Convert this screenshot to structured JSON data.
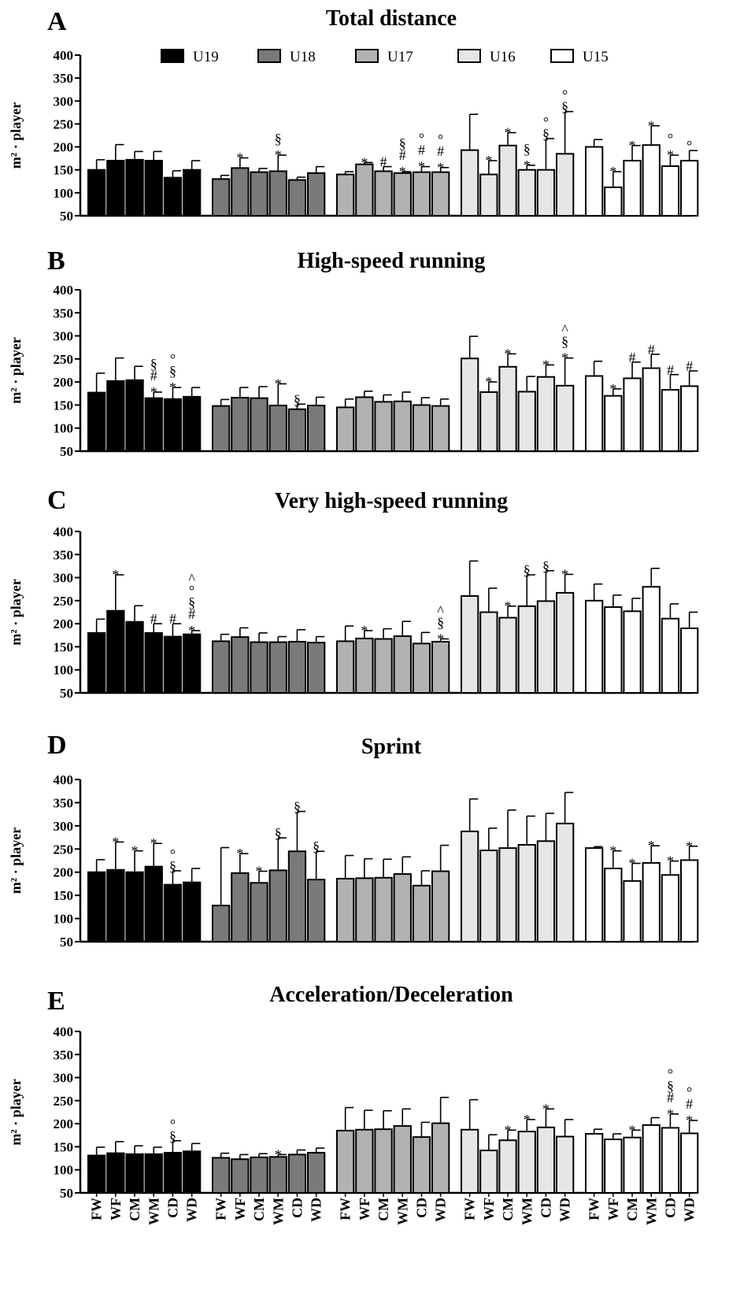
{
  "chart_data": {
    "type": "bar",
    "ylabel": "m² · player",
    "ylim": [
      50,
      400
    ],
    "yticks": [
      50,
      100,
      150,
      200,
      250,
      300,
      350,
      400
    ],
    "groups": [
      "U19",
      "U18",
      "U17",
      "U16",
      "U15"
    ],
    "group_colors": [
      "#000000",
      "#7a7a7a",
      "#b2b2b2",
      "#e6e6e6",
      "#ffffff"
    ],
    "positions": [
      "FW",
      "WF",
      "CM",
      "WM",
      "CD",
      "WD"
    ],
    "legend": {
      "placement": "top",
      "entries": [
        "U19",
        "U18",
        "U17",
        "U16",
        "U15"
      ]
    },
    "grid": false,
    "panels": [
      {
        "letter": "A",
        "title": "Total distance",
        "series": [
          {
            "name": "U19",
            "values": [
              150,
              170,
              172,
              170,
              133,
              150
            ],
            "errors": [
              22,
              35,
              18,
              20,
              15,
              20
            ],
            "marks": [
              "",
              "",
              "",
              "",
              "",
              ""
            ]
          },
          {
            "name": "U18",
            "values": [
              130,
              154,
              145,
              147,
              128,
              143
            ],
            "errors": [
              8,
              22,
              8,
              35,
              6,
              14
            ],
            "marks": [
              "",
              "*",
              "",
              "§\n*",
              "",
              ""
            ]
          },
          {
            "name": "U17",
            "values": [
              140,
              162,
              147,
              143,
              145,
              145
            ],
            "errors": [
              6,
              4,
              10,
              3,
              12,
              10
            ],
            "marks": [
              "",
              "*",
              "#",
              "§\n#\n*",
              "°\n#\n*",
              "°\n#\n*"
            ]
          },
          {
            "name": "U16",
            "values": [
              193,
              140,
              203,
              150,
              150,
              185
            ],
            "errors": [
              78,
              30,
              28,
              10,
              68,
              92
            ],
            "marks": [
              "",
              "*",
              "*",
              "§\n*",
              "°\n§",
              "°\n§"
            ]
          },
          {
            "name": "U15",
            "values": [
              200,
              112,
              170,
              204,
              158,
              170
            ],
            "errors": [
              16,
              34,
              33,
              42,
              24,
              22
            ],
            "marks": [
              "",
              "*",
              "*",
              "*",
              "°\n*",
              "°"
            ]
          }
        ]
      },
      {
        "letter": "B",
        "title": "High-speed running",
        "series": [
          {
            "name": "U19",
            "values": [
              177,
              202,
              204,
              165,
              163,
              168
            ],
            "errors": [
              42,
              50,
              30,
              13,
              25,
              20
            ],
            "marks": [
              "",
              "",
              "",
              "§\n#\n*",
              "°\n§\n*",
              ""
            ]
          },
          {
            "name": "U18",
            "values": [
              148,
              166,
              165,
              149,
              141,
              149
            ],
            "errors": [
              14,
              22,
              25,
              47,
              11,
              18
            ],
            "marks": [
              "",
              "",
              "",
              "*",
              "§",
              ""
            ]
          },
          {
            "name": "U17",
            "values": [
              145,
              167,
              157,
              158,
              150,
              148
            ],
            "errors": [
              18,
              13,
              15,
              20,
              16,
              15
            ],
            "marks": [
              "",
              "",
              "",
              "",
              "",
              ""
            ]
          },
          {
            "name": "U16",
            "values": [
              251,
              178,
              233,
              179,
              211,
              192
            ],
            "errors": [
              48,
              22,
              28,
              33,
              26,
              60
            ],
            "marks": [
              "",
              "*",
              "*",
              "",
              "*",
              "^\n§\n*"
            ]
          },
          {
            "name": "U15",
            "values": [
              213,
              170,
              208,
              230,
              183,
              191
            ],
            "errors": [
              32,
              15,
              35,
              30,
              33,
              33
            ],
            "marks": [
              "",
              "*",
              "#",
              "#",
              "#",
              "#"
            ]
          }
        ]
      },
      {
        "letter": "C",
        "title": "Very high-speed running",
        "series": [
          {
            "name": "U19",
            "values": [
              180,
              228,
              204,
              180,
              172,
              177
            ],
            "errors": [
              30,
              78,
              35,
              20,
              28,
              8
            ],
            "marks": [
              "",
              "*",
              "",
              "#",
              "#",
              "^\n°\n§\n#\n*"
            ]
          },
          {
            "name": "U18",
            "values": [
              162,
              171,
              160,
              160,
              161,
              159
            ],
            "errors": [
              15,
              20,
              20,
              12,
              26,
              13
            ],
            "marks": [
              "",
              "",
              "",
              "",
              "",
              ""
            ]
          },
          {
            "name": "U17",
            "values": [
              162,
              168,
              167,
              173,
              157,
              161
            ],
            "errors": [
              33,
              17,
              22,
              32,
              24,
              6
            ],
            "marks": [
              "",
              "*",
              "",
              "",
              "",
              "^\n§\n*"
            ]
          },
          {
            "name": "U16",
            "values": [
              260,
              225,
              213,
              238,
              249,
              267
            ],
            "errors": [
              76,
              52,
              25,
              68,
              66,
              40
            ],
            "marks": [
              "",
              "",
              "*",
              "§",
              "§",
              "*"
            ]
          },
          {
            "name": "U15",
            "values": [
              250,
              236,
              227,
              280,
              211,
              190
            ],
            "errors": [
              36,
              26,
              28,
              40,
              32,
              35
            ],
            "marks": [
              "",
              "",
              "",
              "",
              "",
              ""
            ]
          }
        ]
      },
      {
        "letter": "D",
        "title": "Sprint",
        "series": [
          {
            "name": "U19",
            "values": [
              200,
              205,
              200,
              212,
              173,
              178
            ],
            "errors": [
              27,
              60,
              46,
              50,
              30,
              30
            ],
            "marks": [
              "",
              "*",
              "*",
              "*",
              "°\n§",
              ""
            ]
          },
          {
            "name": "U18",
            "values": [
              128,
              198,
              177,
              204,
              245,
              184
            ],
            "errors": [
              125,
              42,
              25,
              70,
              86,
              61
            ],
            "marks": [
              "",
              "*",
              "*",
              "§",
              "§",
              "§"
            ]
          },
          {
            "name": "U17",
            "values": [
              186,
              187,
              188,
              196,
              171,
              202
            ],
            "errors": [
              50,
              42,
              40,
              37,
              32,
              56
            ],
            "marks": [
              "",
              "",
              "",
              "",
              "",
              ""
            ]
          },
          {
            "name": "U16",
            "values": [
              288,
              247,
              252,
              259,
              267,
              305
            ],
            "errors": [
              70,
              48,
              82,
              62,
              60,
              67
            ],
            "marks": [
              "",
              "",
              "",
              "",
              "",
              ""
            ]
          },
          {
            "name": "U15",
            "values": [
              252,
              208,
              181,
              220,
              194,
              226
            ],
            "errors": [
              3,
              38,
              38,
              37,
              30,
              30
            ],
            "marks": [
              "",
              "*",
              "*",
              "*",
              "*",
              "*"
            ]
          }
        ]
      },
      {
        "letter": "E",
        "title": "Acceleration/Deceleration",
        "series": [
          {
            "name": "U19",
            "values": [
              131,
              136,
              134,
              134,
              137,
              140
            ],
            "errors": [
              18,
              25,
              18,
              15,
              26,
              17
            ],
            "marks": [
              "",
              "",
              "",
              "",
              "°\n§",
              ""
            ]
          },
          {
            "name": "U18",
            "values": [
              126,
              123,
              127,
              128,
              133,
              137
            ],
            "errors": [
              10,
              10,
              8,
              5,
              10,
              10
            ],
            "marks": [
              "",
              "",
              "",
              "*",
              "",
              ""
            ]
          },
          {
            "name": "U17",
            "values": [
              185,
              187,
              188,
              195,
              171,
              201
            ],
            "errors": [
              50,
              42,
              40,
              37,
              32,
              56
            ],
            "marks": [
              "",
              "",
              "",
              "",
              "",
              ""
            ]
          },
          {
            "name": "U16",
            "values": [
              187,
              142,
              164,
              183,
              192,
              172
            ],
            "errors": [
              65,
              34,
              22,
              26,
              40,
              37
            ],
            "marks": [
              "",
              "",
              "*",
              "*",
              "*",
              ""
            ]
          },
          {
            "name": "U15",
            "values": [
              178,
              166,
              170,
              197,
              191,
              179
            ],
            "errors": [
              10,
              12,
              16,
              16,
              30,
              28
            ],
            "marks": [
              "",
              "",
              "*",
              "",
              "°\n§\n#\n*",
              "°\n#\n*"
            ]
          }
        ]
      }
    ]
  }
}
